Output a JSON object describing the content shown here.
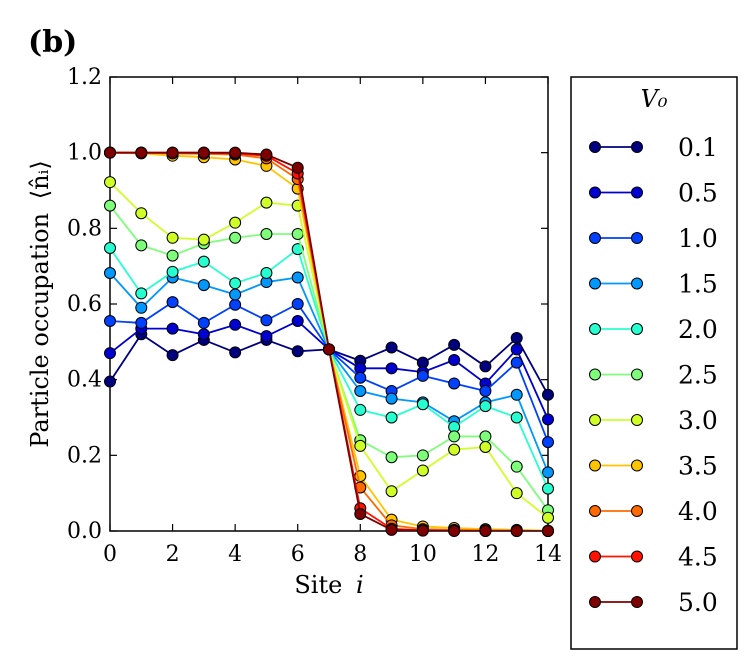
{
  "panel_label": "(b)",
  "chart_data": {
    "type": "line",
    "title": "",
    "xlabel": "Site i",
    "xlabel_main": "Site",
    "xlabel_var": "i",
    "ylabel": "Particle occupation ⟨n̂ᵢ⟩",
    "ylabel_main": "Particle occupation",
    "ylabel_math": "⟨n̂ᵢ⟩",
    "xlim": [
      0,
      14
    ],
    "ylim": [
      0.0,
      1.2
    ],
    "x_ticks": [
      0,
      2,
      4,
      6,
      8,
      10,
      12,
      14
    ],
    "y_ticks": [
      0.0,
      0.2,
      0.4,
      0.6,
      0.8,
      1.0,
      1.2
    ],
    "y_tick_labels": [
      "0.0",
      "0.2",
      "0.4",
      "0.6",
      "0.8",
      "1.0",
      "1.2"
    ],
    "x_tick_labels": [
      "0",
      "2",
      "4",
      "6",
      "8",
      "10",
      "12",
      "14"
    ],
    "legend": {
      "title": "V₀",
      "placement": "outside-right"
    },
    "x": [
      0,
      1,
      2,
      3,
      4,
      5,
      6,
      7,
      8,
      9,
      10,
      11,
      12,
      13,
      14
    ],
    "series": [
      {
        "name": "0.1",
        "color": "#00007f",
        "values": [
          0.395,
          0.52,
          0.465,
          0.505,
          0.472,
          0.505,
          0.475,
          0.48,
          0.45,
          0.485,
          0.445,
          0.492,
          0.435,
          0.51,
          0.36
        ]
      },
      {
        "name": "0.5",
        "color": "#0000d0",
        "values": [
          0.47,
          0.535,
          0.535,
          0.52,
          0.545,
          0.515,
          0.555,
          0.48,
          0.43,
          0.43,
          0.42,
          0.452,
          0.39,
          0.48,
          0.295
        ]
      },
      {
        "name": "1.0",
        "color": "#0040ff",
        "values": [
          0.555,
          0.55,
          0.605,
          0.55,
          0.598,
          0.557,
          0.6,
          0.48,
          0.405,
          0.37,
          0.41,
          0.39,
          0.37,
          0.445,
          0.235
        ]
      },
      {
        "name": "1.5",
        "color": "#0098ff",
        "values": [
          0.682,
          0.59,
          0.67,
          0.65,
          0.625,
          0.658,
          0.67,
          0.48,
          0.37,
          0.35,
          0.34,
          0.29,
          0.34,
          0.36,
          0.155
        ]
      },
      {
        "name": "2.0",
        "color": "#26ffd0",
        "values": [
          0.748,
          0.628,
          0.685,
          0.712,
          0.655,
          0.682,
          0.745,
          0.48,
          0.32,
          0.3,
          0.335,
          0.275,
          0.33,
          0.3,
          0.112
        ]
      },
      {
        "name": "2.5",
        "color": "#7dff7a",
        "values": [
          0.86,
          0.755,
          0.728,
          0.76,
          0.775,
          0.785,
          0.785,
          0.48,
          0.24,
          0.195,
          0.2,
          0.25,
          0.25,
          0.17,
          0.055
        ]
      },
      {
        "name": "3.0",
        "color": "#d0ff26",
        "values": [
          0.922,
          0.84,
          0.775,
          0.77,
          0.815,
          0.868,
          0.86,
          0.48,
          0.225,
          0.105,
          0.16,
          0.215,
          0.222,
          0.1,
          0.035
        ]
      },
      {
        "name": "3.5",
        "color": "#ffc400",
        "values": [
          1.0,
          0.998,
          0.992,
          0.988,
          0.982,
          0.965,
          0.905,
          0.48,
          0.145,
          0.03,
          0.012,
          0.008,
          0.005,
          0.003,
          0.001
        ]
      },
      {
        "name": "4.0",
        "color": "#ff6900",
        "values": [
          1.0,
          1.0,
          0.998,
          0.997,
          0.995,
          0.985,
          0.93,
          0.48,
          0.115,
          0.015,
          0.005,
          0.003,
          0.002,
          0.001,
          0.0
        ]
      },
      {
        "name": "4.5",
        "color": "#ff1300",
        "values": [
          1.0,
          1.0,
          1.0,
          1.0,
          0.998,
          0.992,
          0.945,
          0.48,
          0.06,
          0.006,
          0.002,
          0.001,
          0.0,
          0.0,
          0.0
        ]
      },
      {
        "name": "5.0",
        "color": "#7f0000",
        "values": [
          1.0,
          1.0,
          1.0,
          1.0,
          1.0,
          0.995,
          0.96,
          0.48,
          0.045,
          0.003,
          0.001,
          0.0,
          0.0,
          0.0,
          0.0
        ]
      }
    ]
  }
}
